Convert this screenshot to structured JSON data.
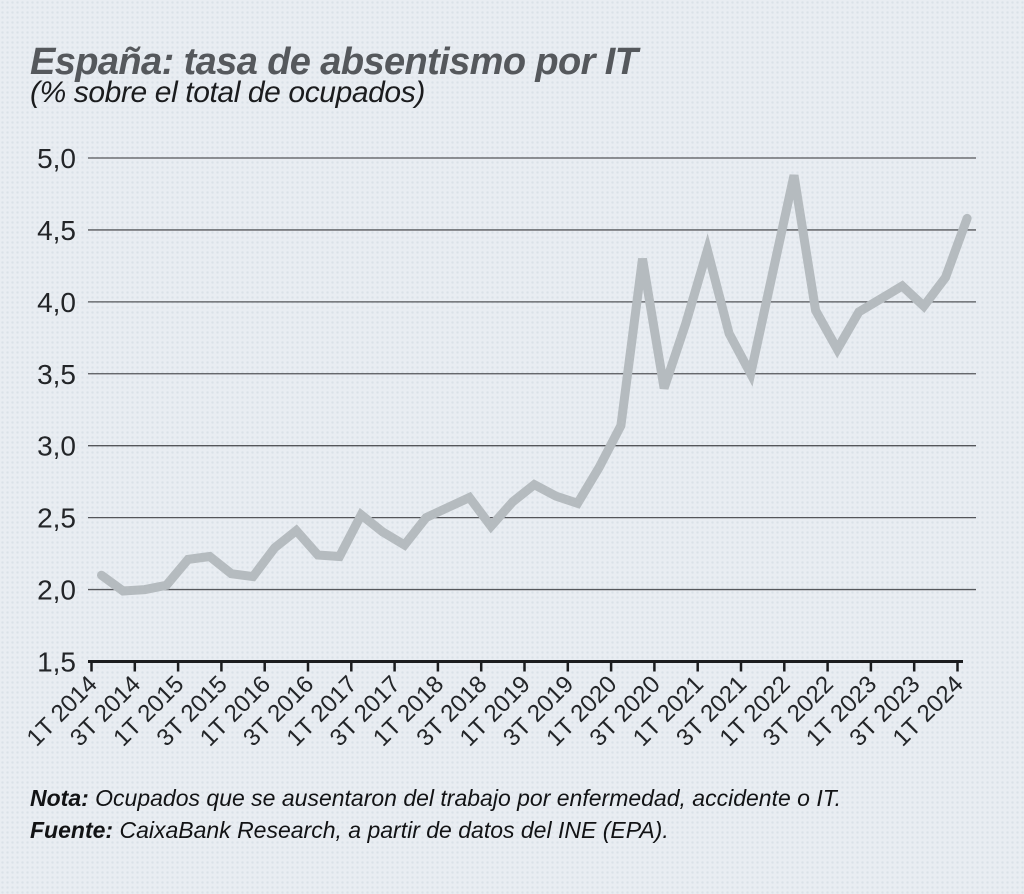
{
  "header": {
    "title": "España: tasa de absentismo por IT",
    "subtitle": "(% sobre el total de ocupados)"
  },
  "chart_data": {
    "type": "line",
    "title": "España: tasa de absentismo por IT",
    "subtitle": "(% sobre el total de ocupados)",
    "categories": [
      "1T 2014",
      "2T 2014",
      "3T 2014",
      "4T 2014",
      "1T 2015",
      "2T 2015",
      "3T 2015",
      "4T 2015",
      "1T 2016",
      "2T 2016",
      "3T 2016",
      "4T 2016",
      "1T 2017",
      "2T 2017",
      "3T 2017",
      "4T 2017",
      "1T 2018",
      "2T 2018",
      "3T 2018",
      "4T 2018",
      "1T 2019",
      "2T 2019",
      "3T 2019",
      "4T 2019",
      "1T 2020",
      "2T 2020",
      "3T 2020",
      "4T 2020",
      "1T 2021",
      "2T 2021",
      "3T 2021",
      "4T 2021",
      "1T 2022",
      "2T 2022",
      "3T 2022",
      "4T 2022",
      "1T 2023",
      "2T 2023",
      "3T 2023",
      "4T 2023",
      "1T 2024"
    ],
    "values": [
      2.1,
      1.99,
      2.0,
      2.03,
      2.21,
      2.23,
      2.11,
      2.09,
      2.29,
      2.41,
      2.24,
      2.23,
      2.52,
      2.4,
      2.31,
      2.5,
      2.57,
      2.64,
      2.44,
      2.61,
      2.73,
      2.65,
      2.6,
      2.85,
      3.14,
      4.3,
      3.4,
      3.85,
      4.36,
      3.78,
      3.5,
      4.19,
      4.88,
      3.94,
      3.67,
      3.93,
      4.02,
      4.11,
      3.97,
      4.17,
      4.58
    ],
    "x_tick_labels": [
      "1T 2014",
      "3T 2014",
      "1T 2015",
      "3T 2015",
      "1T 2016",
      "3T 2016",
      "1T 2017",
      "3T 2017",
      "1T 2018",
      "3T 2018",
      "1T 2019",
      "3T 2019",
      "1T 2020",
      "3T 2020",
      "1T 2021",
      "3T 2021",
      "1T 2022",
      "3T 2022",
      "1T 2023",
      "3T 2023",
      "1T 2024"
    ],
    "y_tick_labels": [
      "5,0",
      "4,5",
      "4,0",
      "3,5",
      "3,0",
      "2,5",
      "2,0",
      "1,5"
    ],
    "y_tick_values": [
      5.0,
      4.5,
      4.0,
      3.5,
      3.0,
      2.5,
      2.0,
      1.5
    ],
    "ylim": [
      1.5,
      5.0
    ],
    "grid": "horizontal",
    "legend": "none",
    "line_color": "#b5bbbf",
    "grid_color": "#54565a",
    "axis_color": "#1b1c1e",
    "label_color": "#232528"
  },
  "footer": {
    "note_label": "Nota:",
    "note_text": " Ocupados que se ausentaron del trabajo por enfermedad, accidente o IT.",
    "source_label": "Fuente:",
    "source_text": " CaixaBank Research, a partir de datos del INE (EPA)."
  }
}
